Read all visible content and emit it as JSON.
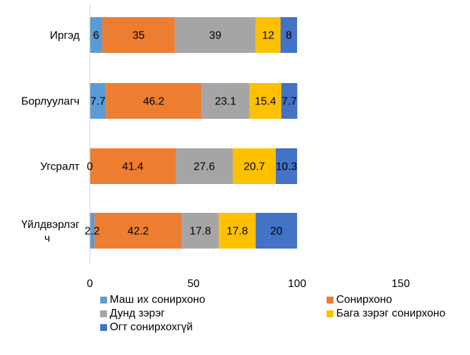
{
  "chart_data": {
    "type": "bar",
    "orientation": "horizontal",
    "stacked": true,
    "categories": [
      "Иргэд",
      "Борлуулагч",
      "Угсралт",
      "Үйлдвэрлэг ч"
    ],
    "series": [
      {
        "name": "Маш их сонирхоно",
        "color": "#5B9BD5",
        "values": [
          6,
          7.7,
          0,
          2.2
        ]
      },
      {
        "name": "Сонирхоно",
        "color": "#ED7D31",
        "values": [
          35,
          46.2,
          41.4,
          42.2
        ]
      },
      {
        "name": "Дунд зэрэг",
        "color": "#A5A5A5",
        "values": [
          39,
          23.1,
          27.6,
          17.8
        ]
      },
      {
        "name": "Бага зэрэг сонирхоно",
        "color": "#FFC000",
        "values": [
          12,
          15.4,
          20.7,
          17.8
        ]
      },
      {
        "name": "Огт сонирхохгүй",
        "color": "#4472C4",
        "values": [
          8,
          7.7,
          10.3,
          20
        ]
      }
    ],
    "xlim": [
      0,
      150
    ],
    "x_ticks": [
      0,
      50,
      100,
      150
    ],
    "grid": false,
    "legend_position": "bottom"
  }
}
